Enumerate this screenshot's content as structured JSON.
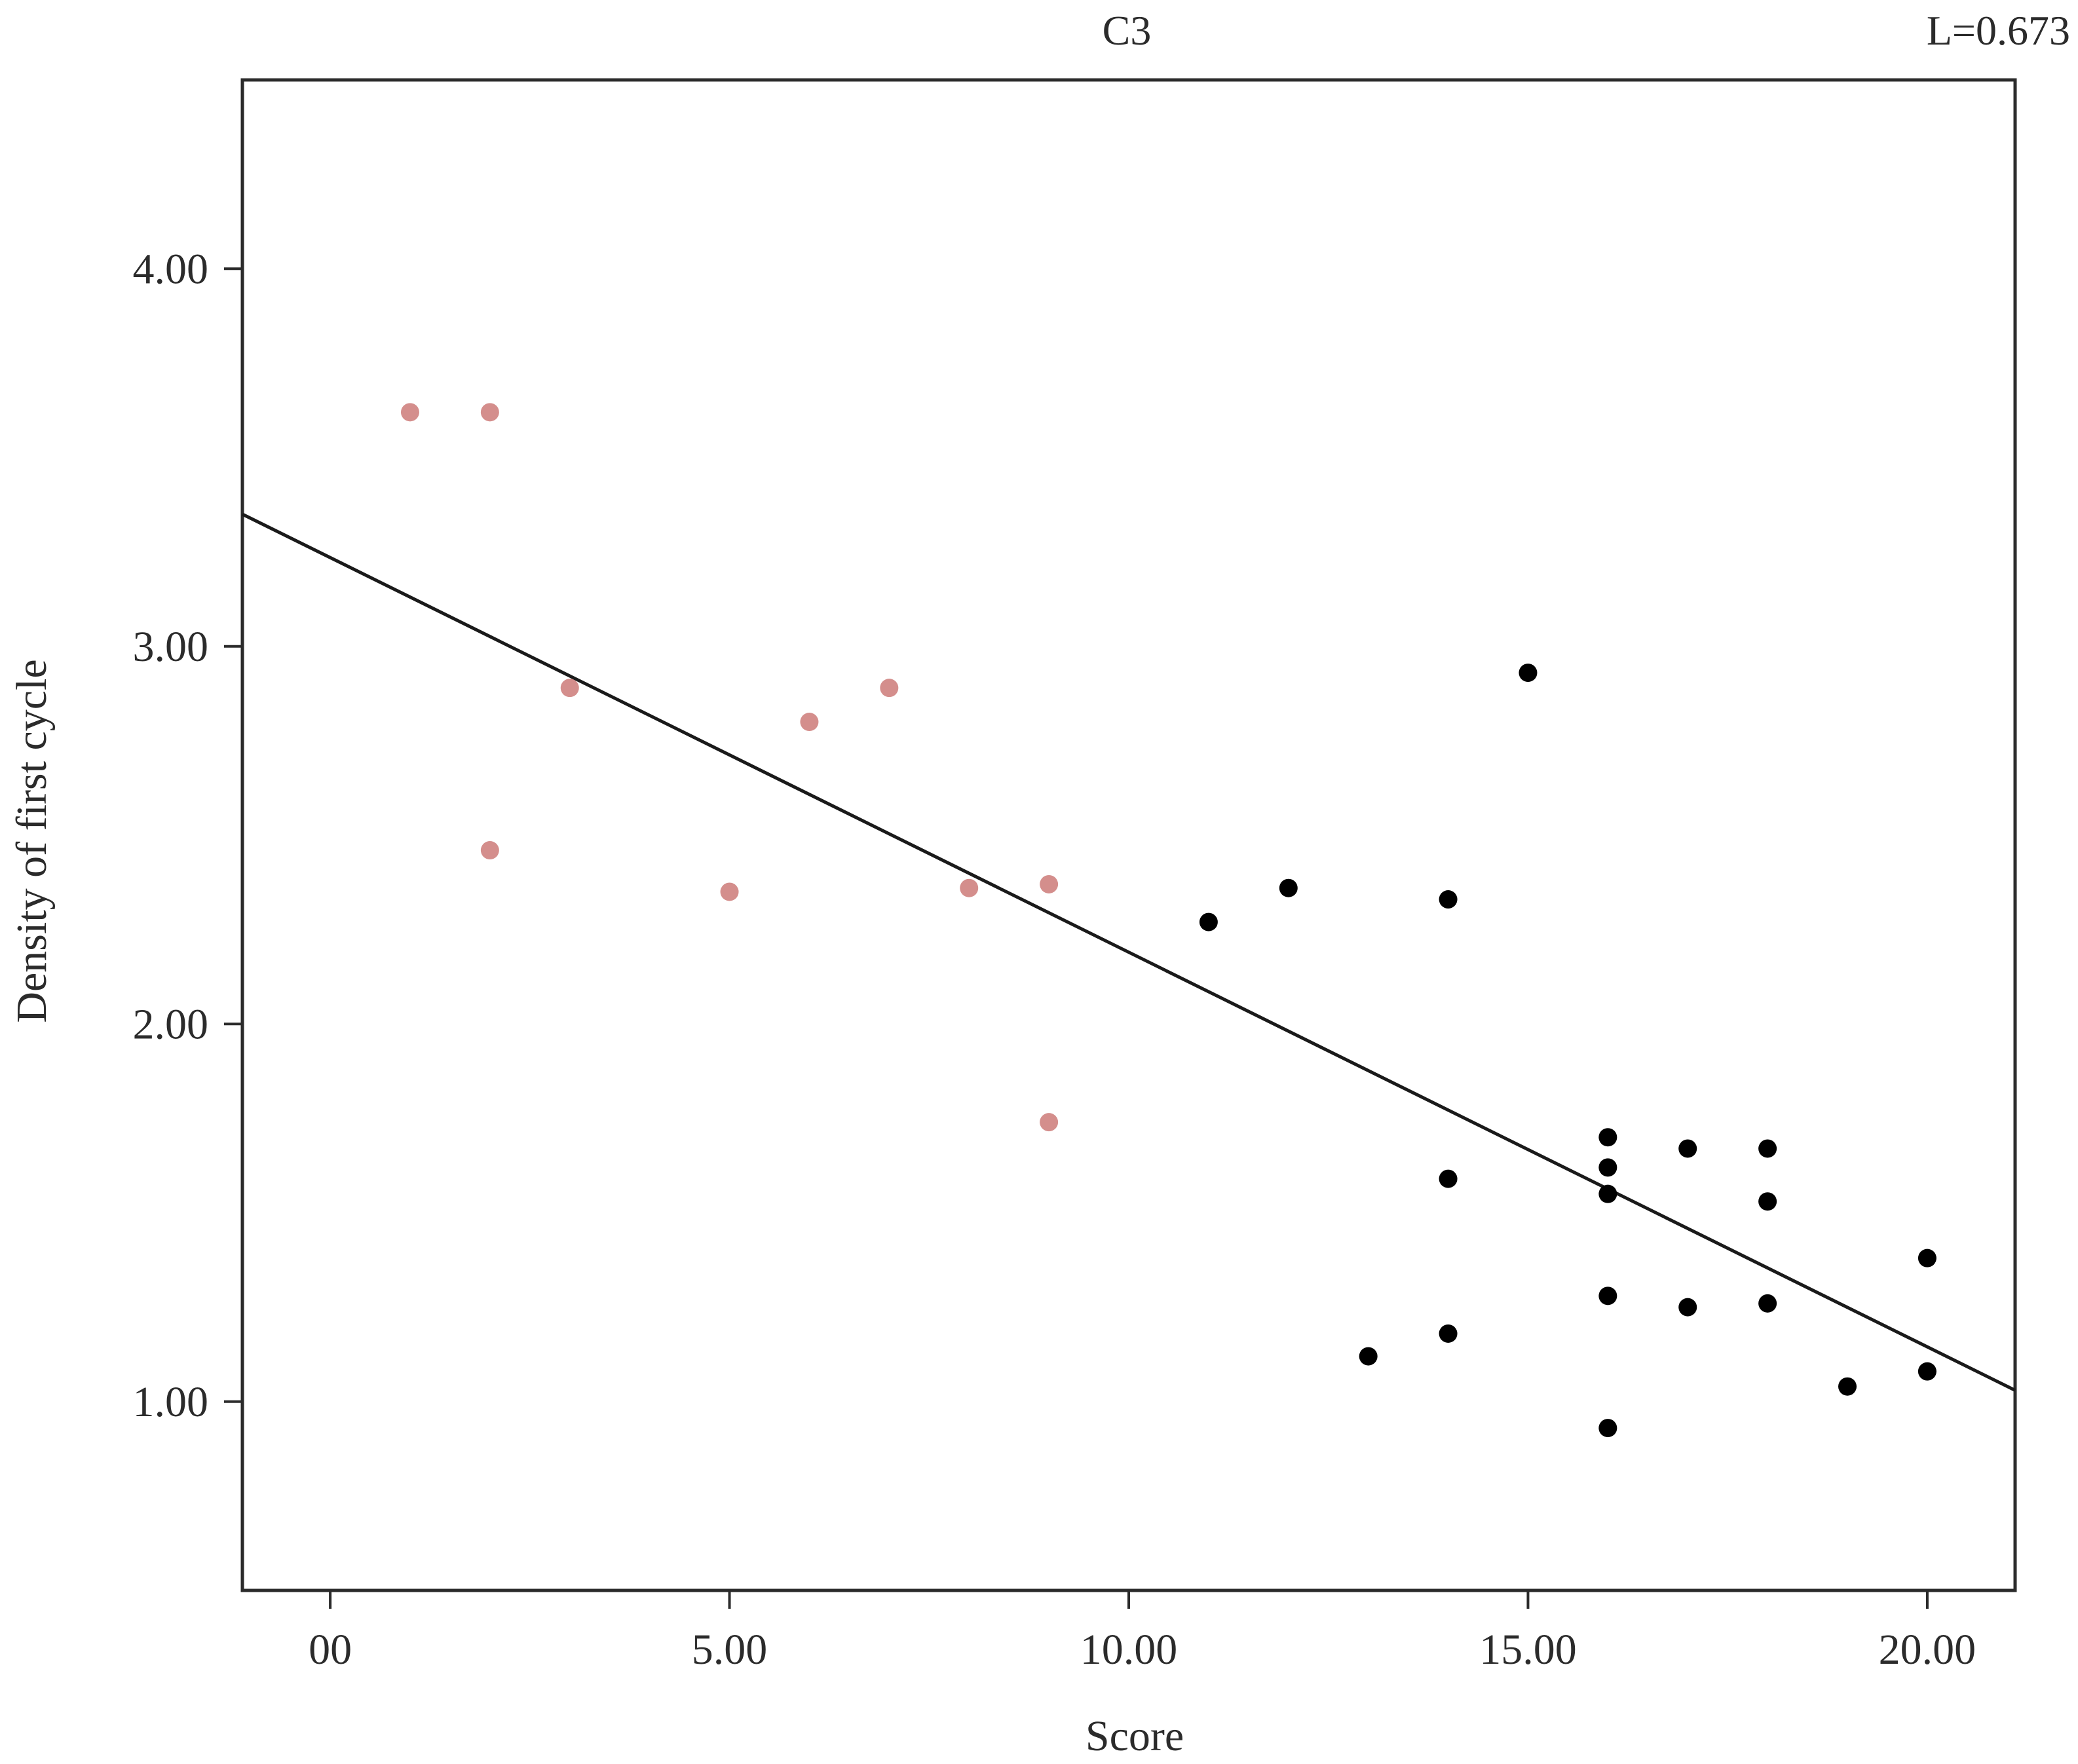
{
  "chart_data": {
    "type": "scatter",
    "title": "C3",
    "annotation": "L=0.673",
    "xlabel": "Score",
    "ylabel": "Density of first cycle",
    "xlim": [
      -1.1,
      21.1
    ],
    "ylim": [
      0.5,
      4.5
    ],
    "x_ticks": [
      {
        "value": 0,
        "label": "00"
      },
      {
        "value": 5,
        "label": "5.00"
      },
      {
        "value": 10,
        "label": "10.00"
      },
      {
        "value": 15,
        "label": "15.00"
      },
      {
        "value": 20,
        "label": "20.00"
      }
    ],
    "y_ticks": [
      {
        "value": 1,
        "label": "1.00"
      },
      {
        "value": 2,
        "label": "2.00"
      },
      {
        "value": 3,
        "label": "3.00"
      },
      {
        "value": 4,
        "label": "4.00"
      }
    ],
    "grid": false,
    "series": [
      {
        "color": "#d48e8c",
        "points": [
          [
            1,
            3.62
          ],
          [
            2,
            3.62
          ],
          [
            3,
            2.89
          ],
          [
            6,
            2.8
          ],
          [
            7,
            2.89
          ],
          [
            2,
            2.46
          ],
          [
            5,
            2.35
          ],
          [
            8,
            2.36
          ],
          [
            9,
            2.37
          ],
          [
            9,
            1.74
          ]
        ]
      },
      {
        "color": "#000000",
        "points": [
          [
            11,
            2.27
          ],
          [
            12,
            2.36
          ],
          [
            14,
            2.33
          ],
          [
            15,
            2.93
          ],
          [
            14,
            1.59
          ],
          [
            14,
            1.18
          ],
          [
            13,
            1.12
          ],
          [
            16,
            1.7
          ],
          [
            16,
            1.62
          ],
          [
            16,
            1.55
          ],
          [
            16,
            1.28
          ],
          [
            16,
            0.93
          ],
          [
            17,
            1.67
          ],
          [
            17,
            1.25
          ],
          [
            18,
            1.67
          ],
          [
            18,
            1.53
          ],
          [
            18,
            1.26
          ],
          [
            19,
            1.04
          ],
          [
            20,
            1.38
          ],
          [
            20,
            1.08
          ]
        ]
      }
    ],
    "fit_line": {
      "color": "#1a1a1a",
      "x": [
        -1.1,
        21.1
      ],
      "y": [
        3.35,
        1.03
      ]
    }
  }
}
